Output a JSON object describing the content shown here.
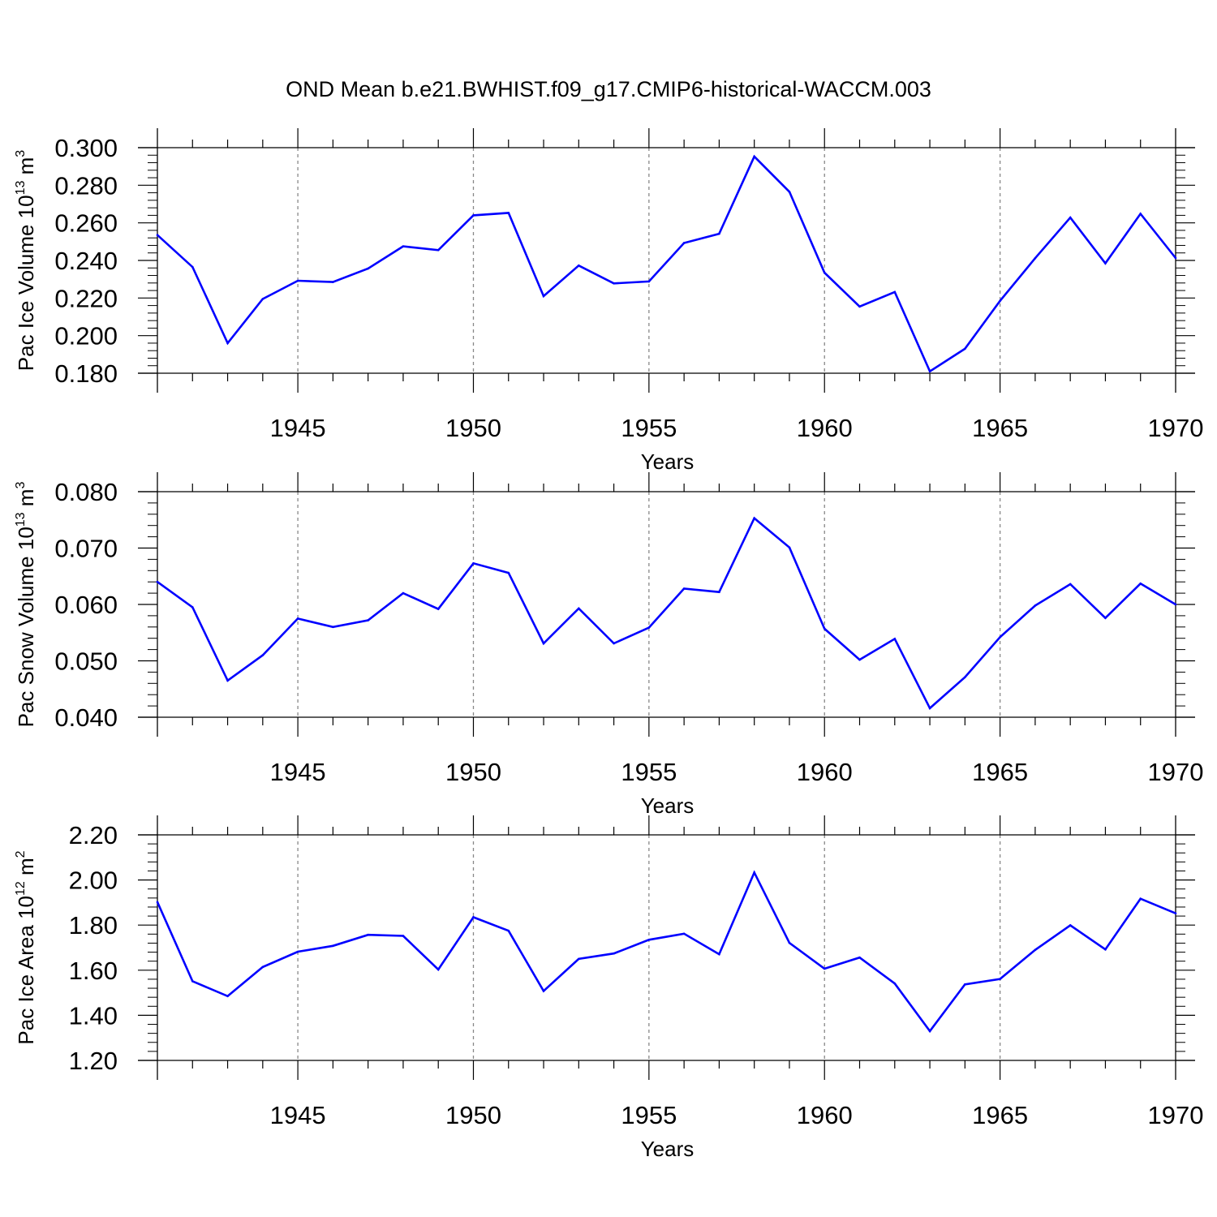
{
  "title": "OND Mean b.e21.BWHIST.f09_g17.CMIP6-historical-WACCM.003",
  "chart_data": [
    {
      "type": "line",
      "ylabel": {
        "text": "Pac Ice Volume 10",
        "exponent": "13",
        "unit": " m",
        "unit_exponent": "3"
      },
      "xlabel": "Years",
      "xlim": [
        1941,
        1970
      ],
      "ylim": [
        0.18,
        0.3
      ],
      "y_ticks": [
        "0.180",
        "0.200",
        "0.220",
        "0.240",
        "0.260",
        "0.280",
        "0.300"
      ],
      "x_ticks": [
        "1945",
        "1950",
        "1955",
        "1960",
        "1965",
        "1970"
      ],
      "grid": "dashed vertical lines at major x ticks",
      "line_color": "#0000ff",
      "series": [
        {
          "x": [
            1941,
            1942,
            1943,
            1944,
            1945,
            1946,
            1947,
            1948,
            1949,
            1950,
            1951,
            1952,
            1953,
            1954,
            1955,
            1956,
            1957,
            1958,
            1959,
            1960,
            1961,
            1962,
            1963,
            1964,
            1965,
            1966,
            1967,
            1968,
            1969,
            1970
          ],
          "values": [
            0.2535,
            0.2365,
            0.196,
            0.2195,
            0.2292,
            0.2285,
            0.2357,
            0.2475,
            0.2455,
            0.264,
            0.2653,
            0.221,
            0.2373,
            0.2278,
            0.2288,
            0.2493,
            0.2542,
            0.2953,
            0.2765,
            0.2335,
            0.2155,
            0.2232,
            0.181,
            0.193,
            0.2185,
            0.2412,
            0.2628,
            0.2385,
            0.2648,
            0.2413
          ]
        }
      ]
    },
    {
      "type": "line",
      "ylabel": {
        "text": "Pac Snow Volume 10",
        "exponent": "13",
        "unit": " m",
        "unit_exponent": "3"
      },
      "xlabel": "Years",
      "xlim": [
        1941,
        1970
      ],
      "ylim": [
        0.04,
        0.08
      ],
      "y_ticks": [
        "0.040",
        "0.050",
        "0.060",
        "0.070",
        "0.080"
      ],
      "x_ticks": [
        "1945",
        "1950",
        "1955",
        "1960",
        "1965",
        "1970"
      ],
      "grid": "dashed vertical lines at major x ticks",
      "line_color": "#0000ff",
      "series": [
        {
          "x": [
            1941,
            1942,
            1943,
            1944,
            1945,
            1946,
            1947,
            1948,
            1949,
            1950,
            1951,
            1952,
            1953,
            1954,
            1955,
            1956,
            1957,
            1958,
            1959,
            1960,
            1961,
            1962,
            1963,
            1964,
            1965,
            1966,
            1967,
            1968,
            1969,
            1970
          ],
          "values": [
            0.064,
            0.0595,
            0.0465,
            0.051,
            0.0575,
            0.056,
            0.0572,
            0.062,
            0.0592,
            0.0673,
            0.0656,
            0.0531,
            0.0593,
            0.0531,
            0.0559,
            0.0628,
            0.0622,
            0.0753,
            0.0701,
            0.0557,
            0.0502,
            0.0539,
            0.0416,
            0.0471,
            0.0542,
            0.0598,
            0.0636,
            0.0576,
            0.0637,
            0.06
          ]
        }
      ]
    },
    {
      "type": "line",
      "ylabel": {
        "text": "Pac Ice Area 10",
        "exponent": "12",
        "unit": " m",
        "unit_exponent": "2"
      },
      "xlabel": "Years",
      "xlim": [
        1941,
        1970
      ],
      "ylim": [
        1.2,
        2.2
      ],
      "y_ticks": [
        "1.20",
        "1.40",
        "1.60",
        "1.80",
        "2.00",
        "2.20"
      ],
      "x_ticks": [
        "1945",
        "1950",
        "1955",
        "1960",
        "1965",
        "1970"
      ],
      "grid": "dashed vertical lines at major x ticks",
      "line_color": "#0000ff",
      "series": [
        {
          "x": [
            1941,
            1942,
            1943,
            1944,
            1945,
            1946,
            1947,
            1948,
            1949,
            1950,
            1951,
            1952,
            1953,
            1954,
            1955,
            1956,
            1957,
            1958,
            1959,
            1960,
            1961,
            1962,
            1963,
            1964,
            1965,
            1966,
            1967,
            1968,
            1969,
            1970
          ],
          "values": [
            1.902,
            1.551,
            1.485,
            1.614,
            1.682,
            1.708,
            1.757,
            1.752,
            1.603,
            1.835,
            1.775,
            1.508,
            1.65,
            1.674,
            1.735,
            1.762,
            1.671,
            2.033,
            1.721,
            1.607,
            1.656,
            1.541,
            1.33,
            1.537,
            1.561,
            1.69,
            1.799,
            1.692,
            1.917,
            1.852
          ]
        }
      ]
    }
  ]
}
